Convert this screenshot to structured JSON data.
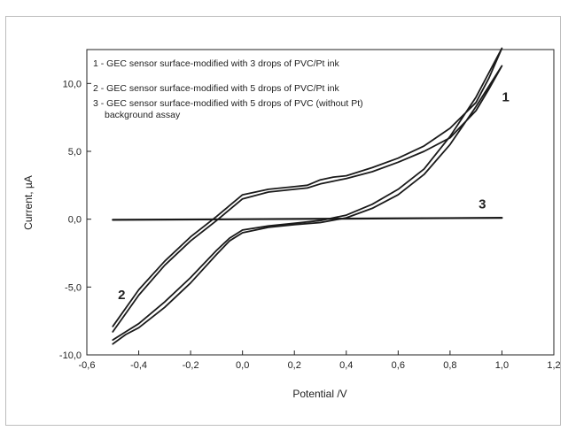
{
  "chart_data": {
    "type": "line",
    "title": "",
    "xlabel": "Potential /V",
    "ylabel": "Current, µA",
    "xlim": [
      -0.6,
      1.2
    ],
    "ylim": [
      -10.0,
      12.5
    ],
    "x_ticks": [
      -0.6,
      -0.4,
      -0.2,
      0.0,
      0.2,
      0.4,
      0.6,
      0.8,
      1.0,
      1.2
    ],
    "x_tick_labels": [
      "-0,6",
      "-0,4",
      "-0,2",
      "0,0",
      "0,2",
      "0,4",
      "0,6",
      "0,8",
      "1,0",
      "1,2"
    ],
    "y_ticks": [
      -10.0,
      -5.0,
      0.0,
      5.0,
      10.0
    ],
    "y_tick_labels": [
      "-10,0",
      "-5,0",
      "0,0",
      "5,0",
      "10,0"
    ],
    "grid": false,
    "legend": [
      "1 - GEC sensor surface-modified with 3 drops of PVC/Pt ink",
      "2 - GEC sensor surface-modified with 5 drops of PVC/Pt ink",
      "3 - GEC sensor surface-modified with 5 drops of PVC (without Pt)",
      "background assay"
    ],
    "curve_labels": [
      {
        "text": "1",
        "x": 1.0,
        "y": 8.7
      },
      {
        "text": "2",
        "x": -0.48,
        "y": -5.9
      },
      {
        "text": "3",
        "x": 0.91,
        "y": 0.8
      }
    ],
    "series": [
      {
        "label": "1",
        "x": [
          -0.5,
          -0.45,
          -0.4,
          -0.3,
          -0.2,
          -0.1,
          -0.05,
          0.0,
          0.1,
          0.2,
          0.3,
          0.4,
          0.5,
          0.6,
          0.7,
          0.8,
          0.9,
          1.0,
          0.95,
          0.9,
          0.8,
          0.7,
          0.6,
          0.5,
          0.4,
          0.35,
          0.3,
          0.25,
          0.2,
          0.1,
          0.0,
          -0.05,
          -0.1,
          -0.2,
          -0.3,
          -0.4,
          -0.5
        ],
        "y": [
          -9.2,
          -8.5,
          -8.0,
          -6.5,
          -4.7,
          -2.6,
          -1.6,
          -1.0,
          -0.6,
          -0.4,
          -0.25,
          0.1,
          0.8,
          1.8,
          3.3,
          5.5,
          8.3,
          11.3,
          9.6,
          8.0,
          6.0,
          5.0,
          4.2,
          3.5,
          3.0,
          2.8,
          2.6,
          2.3,
          2.2,
          2.0,
          1.5,
          0.7,
          -0.1,
          -1.6,
          -3.4,
          -5.6,
          -8.3
        ]
      },
      {
        "label": "2",
        "x": [
          -0.5,
          -0.45,
          -0.4,
          -0.3,
          -0.2,
          -0.1,
          -0.05,
          0.0,
          0.1,
          0.2,
          0.3,
          0.4,
          0.5,
          0.6,
          0.7,
          0.8,
          0.9,
          1.0,
          0.95,
          0.9,
          0.8,
          0.7,
          0.6,
          0.5,
          0.4,
          0.35,
          0.3,
          0.25,
          0.2,
          0.1,
          0.0,
          -0.05,
          -0.1,
          -0.2,
          -0.3,
          -0.4,
          -0.5
        ],
        "y": [
          -8.9,
          -8.3,
          -7.7,
          -6.1,
          -4.3,
          -2.3,
          -1.4,
          -0.8,
          -0.5,
          -0.3,
          -0.1,
          0.3,
          1.1,
          2.2,
          3.7,
          6.1,
          9.0,
          12.6,
          10.4,
          8.6,
          6.7,
          5.4,
          4.5,
          3.8,
          3.2,
          3.1,
          2.9,
          2.5,
          2.4,
          2.2,
          1.8,
          1.0,
          0.2,
          -1.3,
          -3.1,
          -5.2,
          -7.9
        ]
      },
      {
        "label": "3",
        "x": [
          -0.5,
          0.0,
          0.5,
          1.0
        ],
        "y": [
          -0.05,
          0.0,
          0.05,
          0.1
        ]
      }
    ]
  }
}
